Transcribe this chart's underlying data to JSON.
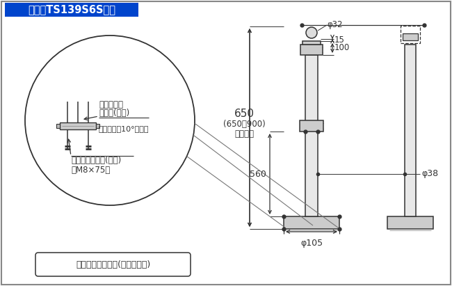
{
  "title": "受支柱TS139S6S寸法",
  "title_bg": "#0044cc",
  "title_fg": "#ffffff",
  "bg_color": "#ffffff",
  "border_color": "#888888",
  "line_color": "#333333",
  "dim_color": "#333333",
  "material_text": "材質：ステンレス(鏡面仕上げ)",
  "label_tilt_bolt_1": "傾斜調整用",
  "label_tilt_bolt_2": "ボルト(同梱)",
  "label_tilt_angle": "〈対応角度10°以内〉",
  "label_anchor_bolt_1": "アンカーボルト(同梱)",
  "label_anchor_bolt_2": "〈M8×75〉",
  "dim_15": "15",
  "dim_100": "100",
  "dim_650": "650",
  "dim_650_range": "(650〜900)",
  "dim_adjustable": "調整可能",
  "dim_560": "560",
  "dim_phi32": "φ32",
  "dim_phi38": "φ38",
  "dim_phi105": "φ105"
}
